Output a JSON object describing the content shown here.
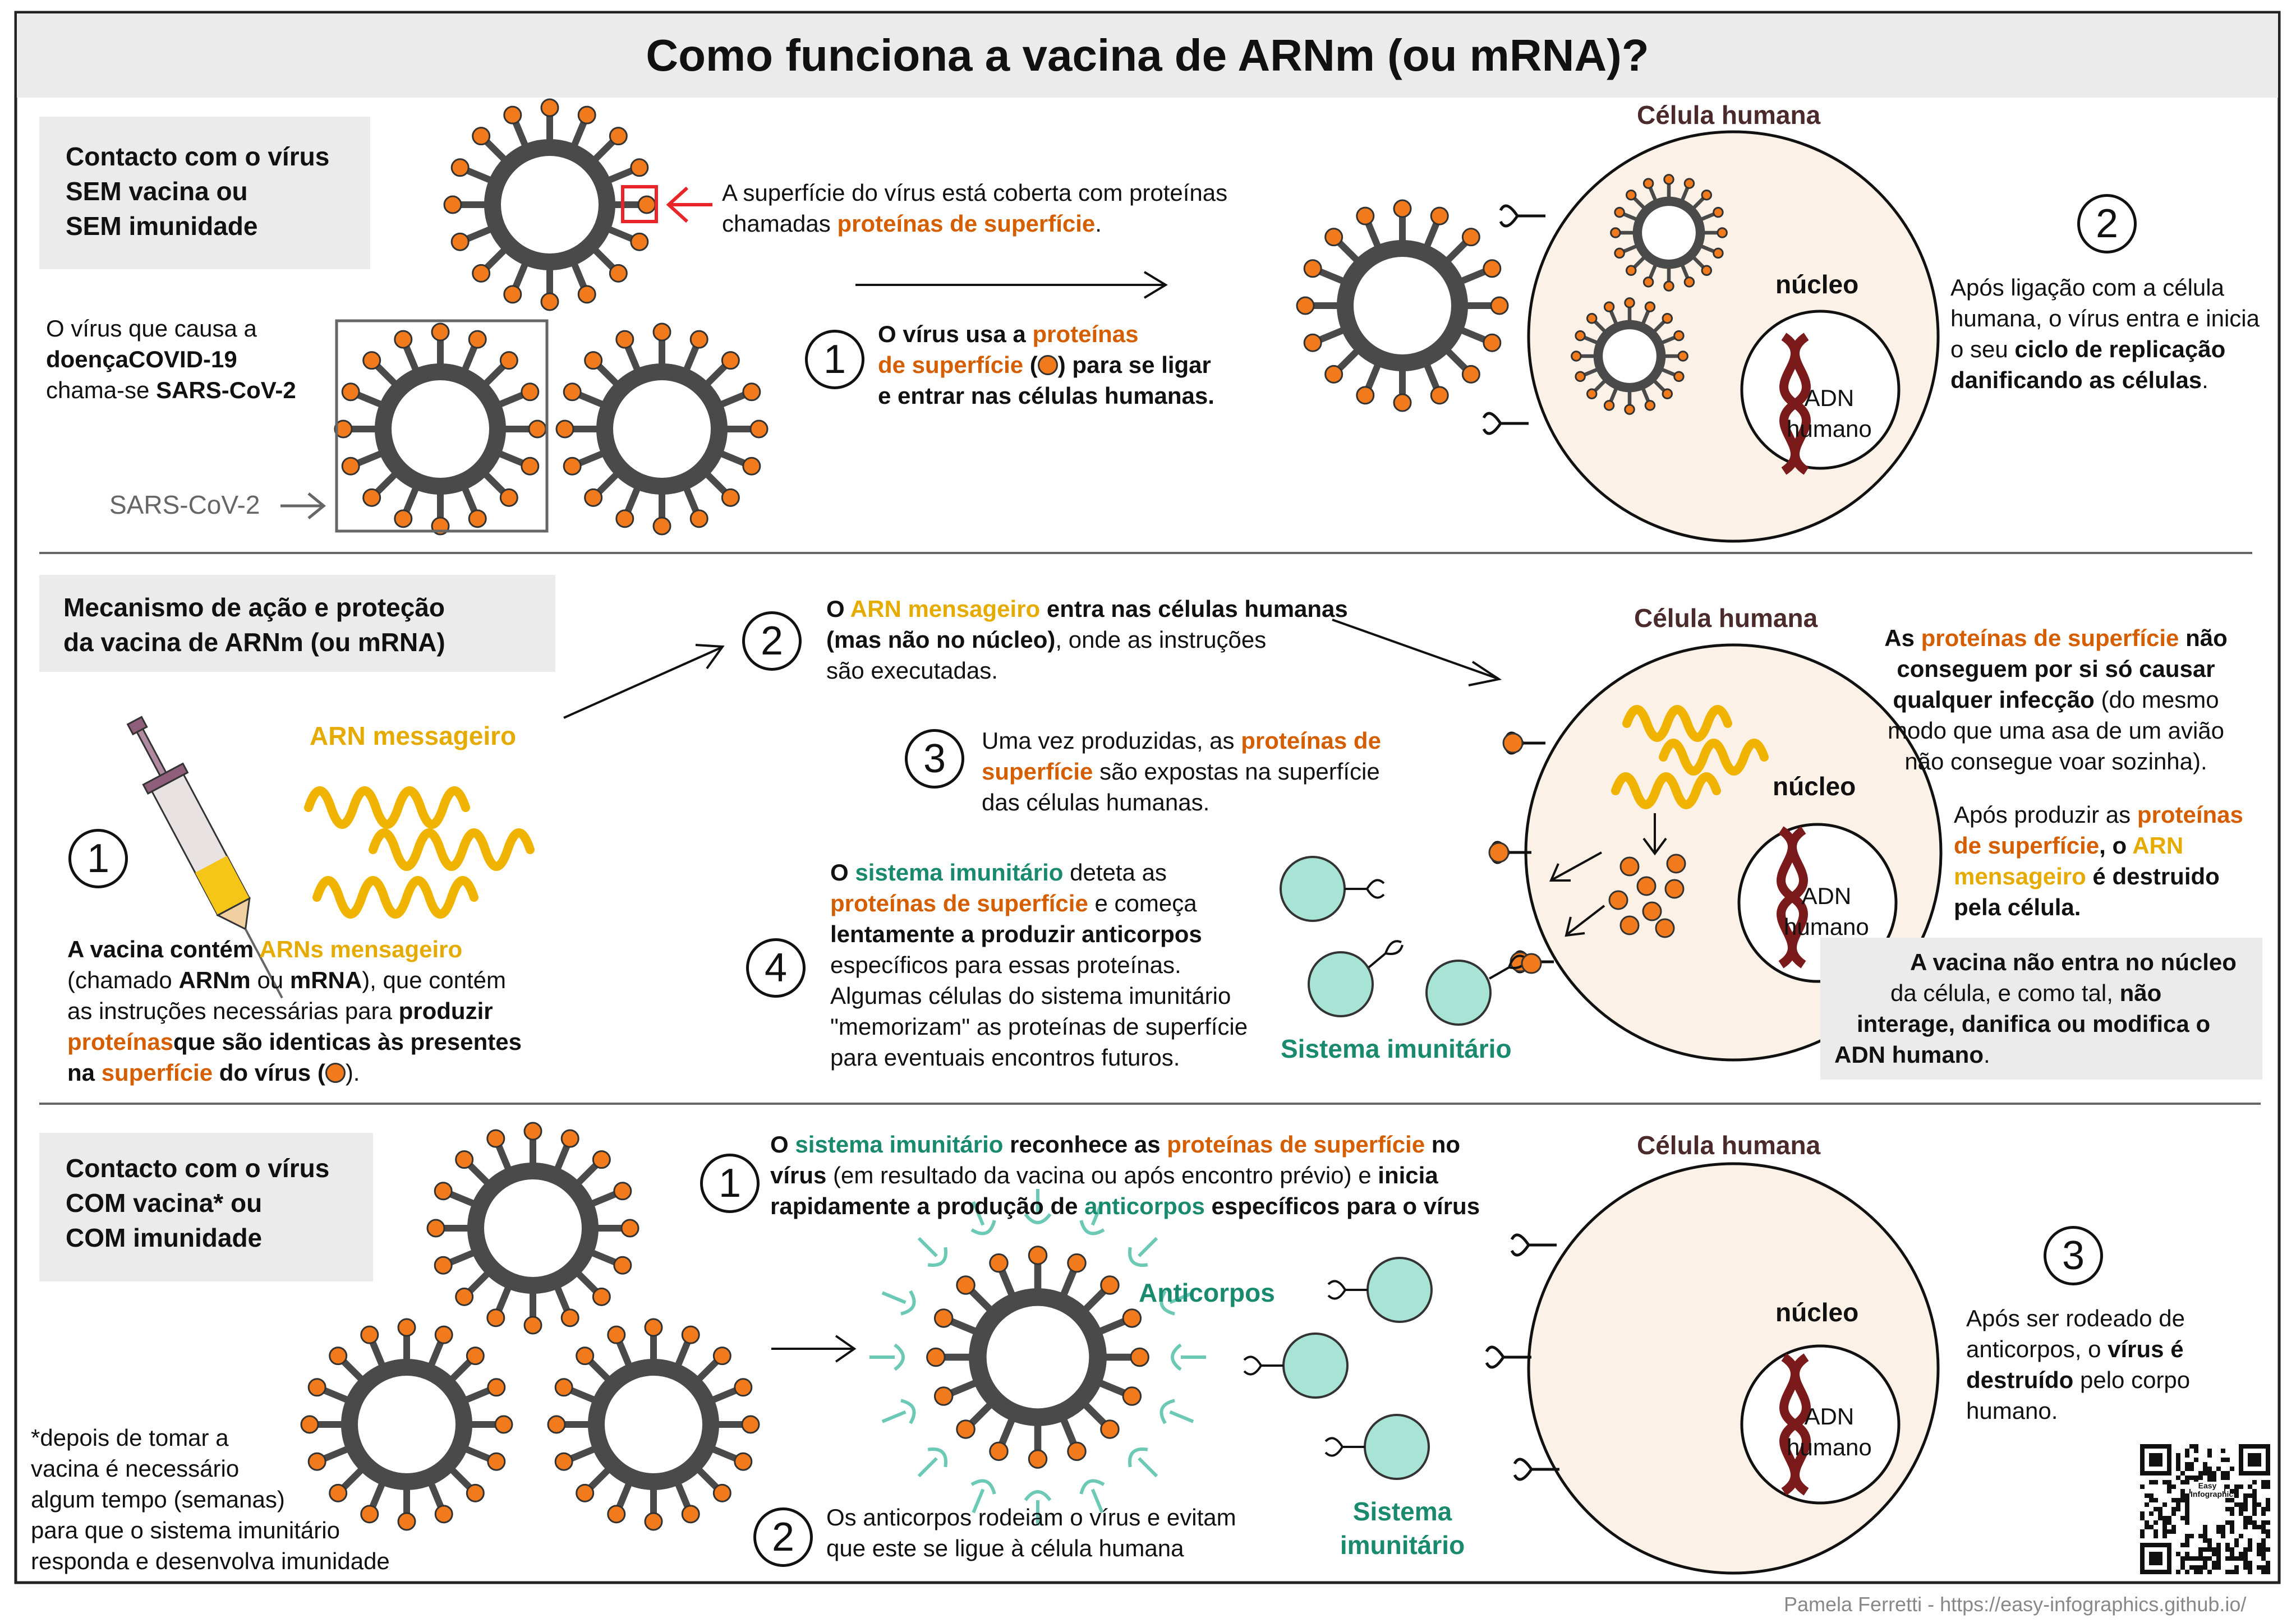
{
  "title": "Como funciona a vacina de ARNm (ou mRNA)?",
  "section1": {
    "heading": [
      "Contacto com o vírus",
      "SEM vacina ou",
      "SEM imunidade"
    ],
    "virus_name_intro": "O vírus que causa a",
    "virus_disease": "doençaCOVID-19",
    "virus_name_prefix": "chama-se ",
    "virus_name": "SARS-CoV-2",
    "virus_label": "SARS-CoV-2",
    "surface_text_1": "A superfície do vírus está coberta com proteínas",
    "surface_text_2_prefix": "chamadas ",
    "surface_text_2_highlight": "proteínas de superfície",
    "surface_text_2_suffix": ".",
    "step1_number": "1",
    "step1_prefix": "O vírus usa a ",
    "step1_highlight_1": "proteínas",
    "step1_highlight_2": "de superfície",
    "step1_mid": " (",
    "step1_mid_end": ") para se ligar",
    "step1_line3": "e entrar nas células humanas.",
    "cell_label": "Célula humana",
    "nucleus_label": "núcleo",
    "dna_label": [
      "ADN",
      "humano"
    ],
    "step2_number": "2",
    "step2_line1": "Após ligação com a célula",
    "step2_line2": "humana, o vírus entra e inicia",
    "step2_line3_prefix": "o seu ",
    "step2_line3_bold": "ciclo de replicação",
    "step2_line4_bold": "danificando as células",
    "step2_line4_suffix": "."
  },
  "section2": {
    "heading": [
      "Mecanismo de ação e proteção",
      "da vacina de ARNm (ou mRNA)"
    ],
    "mrna_label": "ARN messageiro",
    "step1_number": "1",
    "step1_text": {
      "l1_prefix": "A vacina contém ",
      "l1_highlight": "ARNs mensageiro",
      "l2_prefix": "(chamado ",
      "l2_b1": "ARNm",
      "l2_mid": " ou ",
      "l2_b2": "mRNA",
      "l2_suffix": "), que contém",
      "l3_prefix": "as instruções necessárias para ",
      "l3_bold": "produzir",
      "l4_highlight": "proteínas",
      "l4_bold": "que são identicas às presentes",
      "l5_prefix": "na ",
      "l5_highlight": "superfície",
      "l5_mid": " do vírus (",
      "l5_suffix": ")."
    },
    "step2_number": "2",
    "step2_text": {
      "l1_prefix": "O ",
      "l1_highlight": "ARN mensageiro",
      "l1_bold": " entra nas células humanas",
      "l2_bold": "(mas não no núcleo)",
      "l2_suffix": ", onde as instruções",
      "l3": "são executadas."
    },
    "step3_number": "3",
    "step3_text": {
      "l1_prefix": "Uma vez produzidas, as ",
      "l1_highlight": "proteínas de",
      "l2_highlight": "superfície",
      "l2_suffix": " são expostas na superfície",
      "l3": "das células humanas."
    },
    "step4_number": "4",
    "step4_text": {
      "l1_prefix": "O ",
      "l1_highlight": "sistema imunitário",
      "l1_suffix": " deteta as",
      "l2_highlight": "proteínas de superfície",
      "l2_suffix": " e começa",
      "l3_bold": "lentamente a produzir anticorpos",
      "l4": "específicos para essas proteínas.",
      "l5": "Algumas células do sistema imunitário",
      "l6": "\"memorizam\" as proteínas de superfície",
      "l7": "para eventuais encontros futuros."
    },
    "immune_label": "Sistema imunitário",
    "cell_label": "Célula humana",
    "nucleus_label": "núcleo",
    "dna_label": [
      "ADN",
      "humano"
    ],
    "note1": {
      "l1_prefix": "As ",
      "l1_highlight": "proteínas de superfície",
      "l1_bold": " não",
      "l2_bold": "conseguem por si só causar",
      "l3_bold": "qualquer infecção",
      "l3_suffix": " (do mesmo",
      "l4": "modo que uma asa de um avião",
      "l5": "não consegue voar sozinha)."
    },
    "note2": {
      "l1_prefix": "Após produzir as ",
      "l1_highlight": "proteínas",
      "l2_highlight": "de superfície",
      "l2_mid": ", o ",
      "l2_highlight2": "ARN",
      "l3_highlight": "mensageiro",
      "l3_bold": " é destruido",
      "l4_bold": "pela célula."
    },
    "note3": {
      "l1_bold": "A vacina não entra no núcleo",
      "l2_prefix": "da célula, e como tal, ",
      "l2_bold": "não",
      "l3_bold": "interage, danifica ou modifica o",
      "l4_bold": "ADN humano",
      "l4_suffix": "."
    }
  },
  "section3": {
    "heading": [
      "Contacto com o vírus",
      "COM vacina* ou",
      "COM imunidade"
    ],
    "footnote": [
      "*depois de tomar a",
      "vacina é necessário",
      "algum tempo (semanas)",
      "para que o sistema imunitário",
      "responda e desenvolva imunidade"
    ],
    "step1_number": "1",
    "step1_text": {
      "l1_prefix": "O ",
      "l1_highlight": "sistema imunitário",
      "l1_bold": " reconhece as ",
      "l1_highlight2": "proteínas de superfície",
      "l1_bold2": " no",
      "l2_bold": "vírus",
      "l2_mid": " (em resultado da vacina ou após encontro prévio) e ",
      "l2_bold2": "inicia",
      "l3_bold": "rapidamente a produção de ",
      "l3_highlight": "anticorpos",
      "l3_bold2": " específicos para o vírus"
    },
    "antibodies_label": "Anticorpos",
    "step2_number": "2",
    "step2_text": [
      "Os anticorpos rodeiam o vírus e evitam",
      "que este se ligue à célula humana"
    ],
    "immune_label": [
      "Sistema",
      "imunitário"
    ],
    "cell_label": "Célula humana",
    "nucleus_label": "núcleo",
    "dna_label": [
      "ADN",
      "humano"
    ],
    "step3_number": "3",
    "step3_text": {
      "l1": "Após ser rodeado de",
      "l2_prefix": "anticorpos, o ",
      "l2_bold": "vírus é",
      "l3_bold": "destruído",
      "l3_suffix": " pelo corpo",
      "l4": "humano."
    },
    "qr_caption": [
      "Easy",
      "Infographics"
    ]
  },
  "footer": "Pamela Ferretti - https://easy-infographics.github.io/",
  "colors": {
    "virus_body": "#4a4a4a",
    "spike_tip": "#f07a1c",
    "cell_fill": "#fbf1e6",
    "immune_cell": "#a7e4d6",
    "mrna": "#f0b400",
    "dna": "#7a1a1a",
    "section_box": "#ebebeb",
    "arrow_red": "#e8262a",
    "orange_text": "#d55e00",
    "yellow_text": "#e6ab00",
    "green_text": "#1a8a6e"
  }
}
